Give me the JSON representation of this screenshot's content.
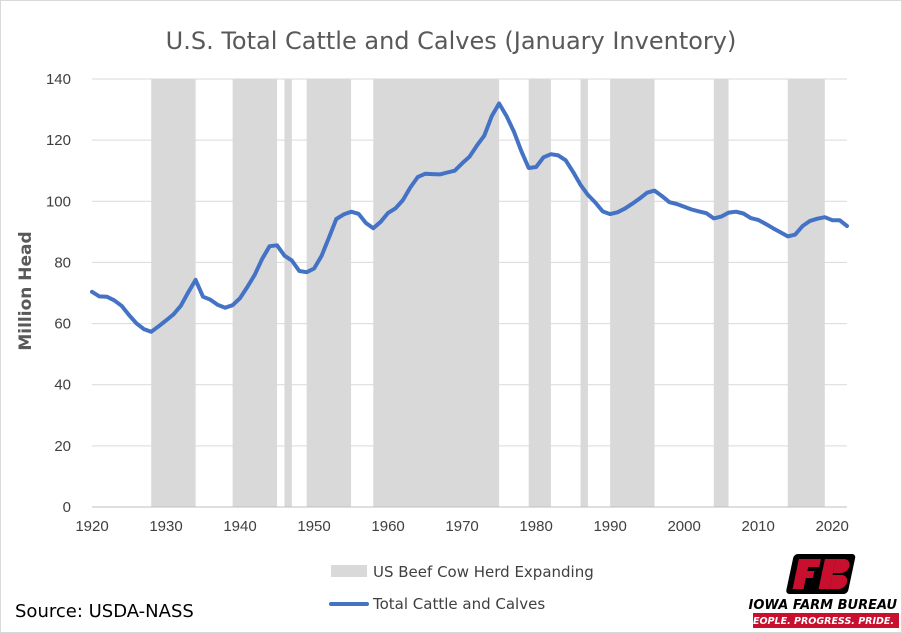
{
  "chart_data": {
    "type": "line",
    "title": "U.S. Total Cattle and Calves (January Inventory)",
    "xlabel": "",
    "ylabel": "Million Head",
    "xlim": [
      1920,
      2022
    ],
    "ylim": [
      0,
      140
    ],
    "xticks": [
      1920,
      1930,
      1940,
      1950,
      1960,
      1970,
      1980,
      1990,
      2000,
      2010,
      2020
    ],
    "yticks": [
      0,
      20,
      40,
      60,
      80,
      100,
      120,
      140
    ],
    "grid": true,
    "legend_position": "bottom",
    "shaded_periods": {
      "name": "US Beef Cow Herd Expanding",
      "color": "#d9d9d9",
      "ranges": [
        [
          1928,
          1934
        ],
        [
          1939,
          1945
        ],
        [
          1946,
          1947
        ],
        [
          1949,
          1955
        ],
        [
          1958,
          1975
        ],
        [
          1979,
          1982
        ],
        [
          1986,
          1987
        ],
        [
          1990,
          1996
        ],
        [
          2004,
          2006
        ],
        [
          2014,
          2019
        ]
      ]
    },
    "series": [
      {
        "name": "Total Cattle and Calves",
        "color": "#4472c4",
        "x": [
          1920,
          1921,
          1922,
          1923,
          1924,
          1925,
          1926,
          1927,
          1928,
          1929,
          1930,
          1931,
          1932,
          1933,
          1934,
          1935,
          1936,
          1937,
          1938,
          1939,
          1940,
          1941,
          1942,
          1943,
          1944,
          1945,
          1946,
          1947,
          1948,
          1949,
          1950,
          1951,
          1952,
          1953,
          1954,
          1955,
          1956,
          1957,
          1958,
          1959,
          1960,
          1961,
          1962,
          1963,
          1964,
          1965,
          1966,
          1967,
          1968,
          1969,
          1970,
          1971,
          1972,
          1973,
          1974,
          1975,
          1976,
          1977,
          1978,
          1979,
          1980,
          1981,
          1982,
          1983,
          1984,
          1985,
          1986,
          1987,
          1988,
          1989,
          1990,
          1991,
          1992,
          1993,
          1994,
          1995,
          1996,
          1997,
          1998,
          1999,
          2000,
          2001,
          2002,
          2003,
          2004,
          2005,
          2006,
          2007,
          2008,
          2009,
          2010,
          2011,
          2012,
          2013,
          2014,
          2015,
          2016,
          2017,
          2018,
          2019,
          2020,
          2021,
          2022
        ],
        "values": [
          70.4,
          68.9,
          68.8,
          67.6,
          65.8,
          62.8,
          60.1,
          58.2,
          57.3,
          59.1,
          61.0,
          63.0,
          65.8,
          70.2,
          74.3,
          68.8,
          67.8,
          66.1,
          65.2,
          66.0,
          68.3,
          72.0,
          76.0,
          81.2,
          85.3,
          85.6,
          82.2,
          80.6,
          77.2,
          76.8,
          78.0,
          82.1,
          88.1,
          94.2,
          95.7,
          96.6,
          95.9,
          92.9,
          91.2,
          93.3,
          96.2,
          97.7,
          100.4,
          104.5,
          107.9,
          109.0,
          108.9,
          108.8,
          109.4,
          110.0,
          112.4,
          114.6,
          118.2,
          121.5,
          127.8,
          132.0,
          127.9,
          122.8,
          116.4,
          110.9,
          111.2,
          114.4,
          115.4,
          115.0,
          113.4,
          109.6,
          105.4,
          102.1,
          99.6,
          96.7,
          95.8,
          96.4,
          97.6,
          99.2,
          100.9,
          102.8,
          103.5,
          101.7,
          99.7,
          99.1,
          98.2,
          97.3,
          96.7,
          96.1,
          94.4,
          95.0,
          96.3,
          96.6,
          96.0,
          94.5,
          93.9,
          92.6,
          91.2,
          89.9,
          88.5,
          89.1,
          91.9,
          93.6,
          94.3,
          94.8,
          93.8,
          93.8,
          91.9
        ]
      }
    ]
  },
  "legend": {
    "shade_label": "US Beef Cow Herd Expanding",
    "line_label": "Total Cattle and Calves"
  },
  "source": "Source: USDA-NASS",
  "logo": {
    "name": "IOWA FARM BUREAU",
    "tagline": "PEOPLE. PROGRESS. PRIDE.",
    "primary_color": "#c8102e"
  }
}
